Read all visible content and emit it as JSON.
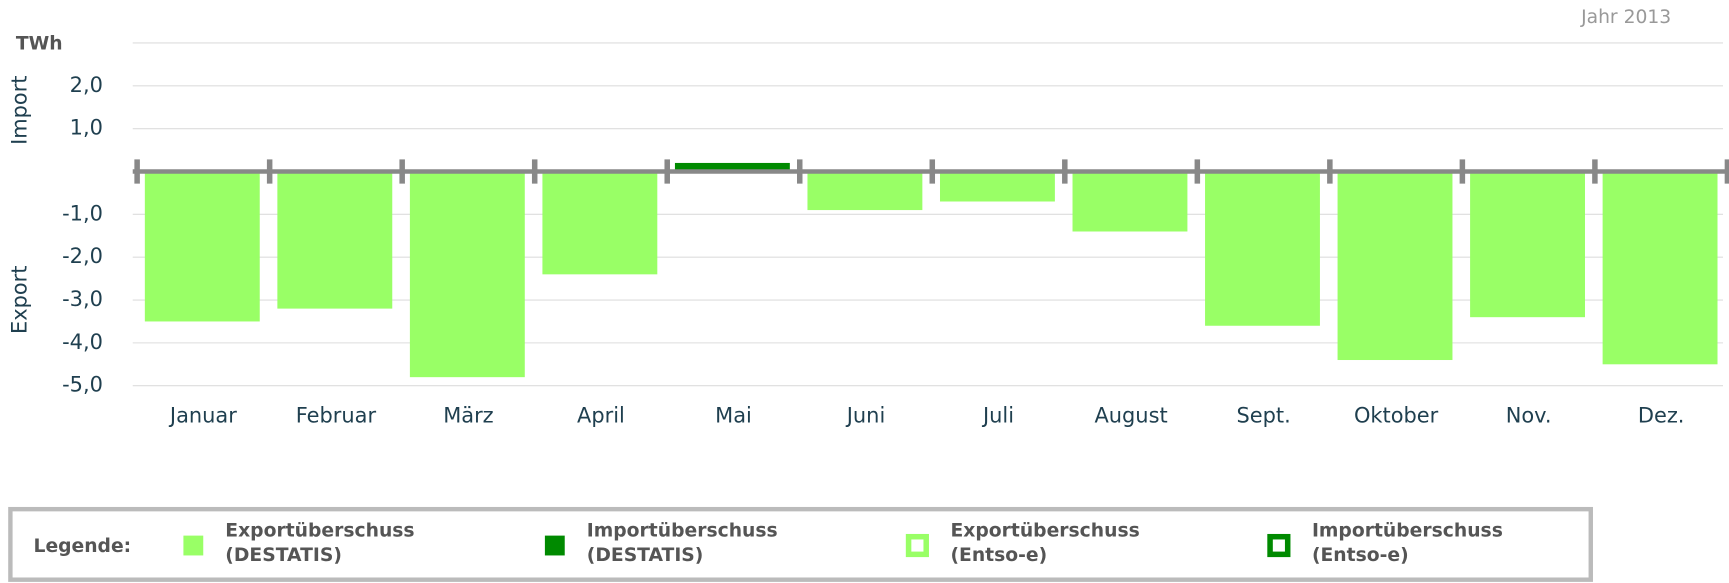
{
  "chart_data": {
    "type": "bar",
    "subtitle": "Jahr 2013",
    "unit": "TWh",
    "y_axis_labels": [
      "Import",
      "Export"
    ],
    "legend_title": "Legende:",
    "categories": [
      "Januar",
      "Februar",
      "März",
      "April",
      "Mai",
      "Juni",
      "Juli",
      "August",
      "Sept.",
      "Oktober",
      "Nov.",
      "Dez."
    ],
    "series": [
      {
        "name": "Exportüberschuss (DESTATIS)",
        "color": "#99ff66",
        "marker": "filled",
        "values": [
          -3.5,
          -3.2,
          -4.8,
          -2.4,
          null,
          -0.9,
          -0.7,
          -1.4,
          -3.6,
          -4.4,
          -3.4,
          -4.5
        ]
      },
      {
        "name": "Importüberschuss (DESTATIS)",
        "color": "#008a00",
        "marker": "filled",
        "values": [
          null,
          null,
          null,
          null,
          0.2,
          null,
          null,
          null,
          null,
          null,
          null,
          null
        ]
      },
      {
        "name": "Exportüberschuss (Entso-e)",
        "color": "#99ff66",
        "marker": "hollow",
        "values": [
          null,
          null,
          null,
          null,
          null,
          null,
          null,
          null,
          null,
          null,
          null,
          null
        ]
      },
      {
        "name": "Importüberschuss (Entso-e)",
        "color": "#008a00",
        "marker": "hollow",
        "values": [
          null,
          null,
          null,
          null,
          null,
          null,
          null,
          null,
          null,
          null,
          null,
          null
        ]
      }
    ],
    "ylim": [
      -5,
      3
    ],
    "yticks": [
      {
        "value": 2,
        "label": "2,0"
      },
      {
        "value": 1,
        "label": "1,0"
      },
      {
        "value": -1,
        "label": "-1,0"
      },
      {
        "value": -2,
        "label": "-2,0"
      },
      {
        "value": -3,
        "label": "-3,0"
      },
      {
        "value": -4,
        "label": "-4,0"
      },
      {
        "value": -5,
        "label": "-5,0"
      }
    ],
    "grid": true
  }
}
